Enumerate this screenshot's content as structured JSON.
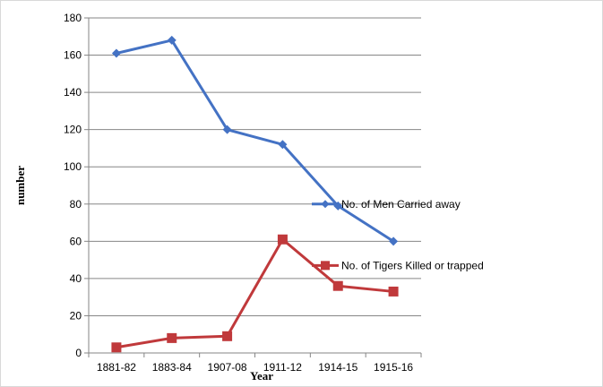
{
  "chart_data": {
    "type": "line",
    "categories": [
      "1881-82",
      "1883-84",
      "1907-08",
      "1911-12",
      "1914-15",
      "1915-16"
    ],
    "series": [
      {
        "name": "No. of Men Carried away",
        "values": [
          161,
          168,
          120,
          112,
          79,
          60
        ],
        "color": "#4472c4",
        "marker": "diamond"
      },
      {
        "name": "No. of Tigers Killed or trapped",
        "values": [
          3,
          8,
          9,
          61,
          36,
          33
        ],
        "color": "#c0393b",
        "marker": "square"
      }
    ],
    "xlabel": "Year",
    "ylabel": "number",
    "ylim": [
      0,
      180
    ],
    "yticks": [
      0,
      20,
      40,
      60,
      80,
      100,
      120,
      140,
      160,
      180
    ],
    "grid": true,
    "legend": "right"
  }
}
